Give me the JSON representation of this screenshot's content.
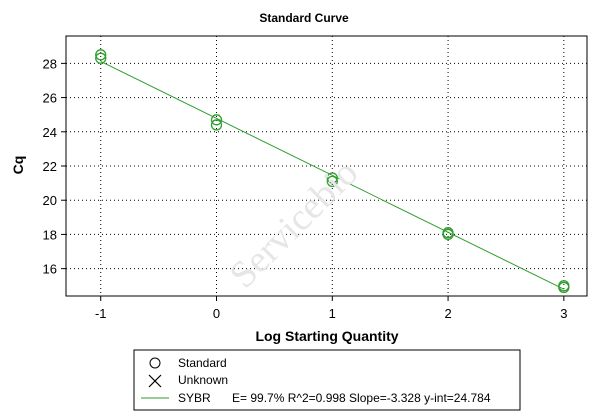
{
  "chart_data": {
    "type": "scatter",
    "title": "Standard Curve",
    "xlabel": "Log Starting Quantity",
    "ylabel": "Cq",
    "xlim": [
      -1.3,
      3.2
    ],
    "ylim": [
      14.4,
      29.6
    ],
    "xticks": [
      -1,
      0,
      1,
      2,
      3
    ],
    "yticks": [
      16,
      18,
      20,
      22,
      24,
      26,
      28
    ],
    "grid": true,
    "series": [
      {
        "name": "Standard",
        "marker": "circle",
        "x": [
          -1,
          -1,
          0,
          0,
          1,
          1,
          2,
          2,
          3,
          3
        ],
        "y": [
          28.5,
          28.3,
          24.7,
          24.4,
          21.3,
          21.1,
          18.1,
          18.0,
          15.0,
          14.9
        ]
      }
    ],
    "fit_line": {
      "name": "SYBR",
      "slope": -3.328,
      "intercept": 24.784,
      "x_range": [
        -1,
        3
      ],
      "stats": "E= 99.7% R^2=0.998 Slope=-3.328 y-int=24.784"
    },
    "legend": {
      "position": "bottom",
      "entries": [
        {
          "label": "Standard",
          "marker": "circle"
        },
        {
          "label": "Unknown",
          "marker": "x"
        },
        {
          "label": "SYBR",
          "marker": "line",
          "stats": "E= 99.7% R^2=0.998 Slope=-3.328 y-int=24.784"
        }
      ]
    },
    "colors": {
      "points": "#2e9e2e",
      "fit": "#2e9e2e",
      "text": "#000000"
    }
  },
  "watermark": "Servicebio"
}
